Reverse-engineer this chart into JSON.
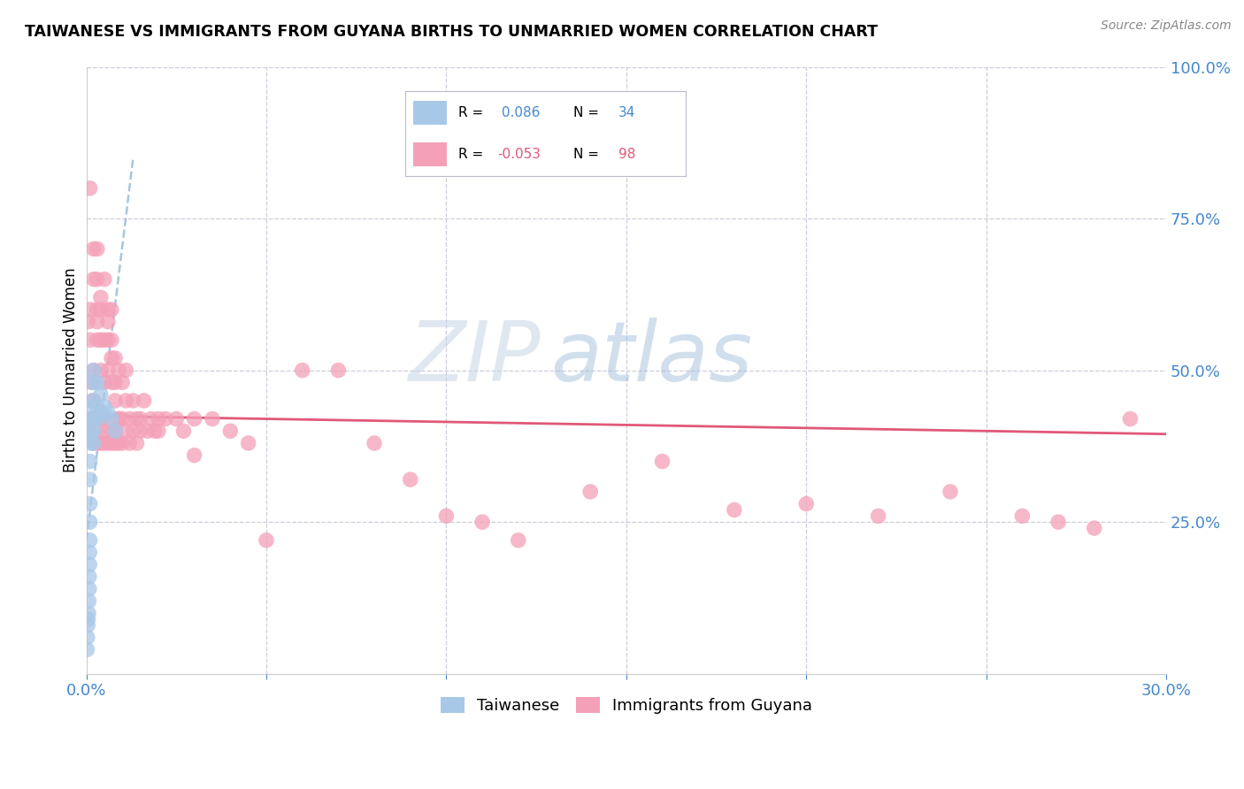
{
  "title": "TAIWANESE VS IMMIGRANTS FROM GUYANA BIRTHS TO UNMARRIED WOMEN CORRELATION CHART",
  "source": "Source: ZipAtlas.com",
  "ylabel": "Births to Unmarried Women",
  "xlim": [
    0.0,
    0.3
  ],
  "ylim": [
    0.0,
    1.0
  ],
  "color_taiwanese": "#a8c8e8",
  "color_guyana": "#f4a0b8",
  "color_trend_taiwanese": "#90b8d8",
  "color_trend_guyana": "#e05878",
  "color_blue_text": "#4488cc",
  "color_pink_text": "#e05878",
  "watermark_zip": "ZIP",
  "watermark_atlas": "atlas",
  "watermark_color_zip": "#c0d0e0",
  "watermark_color_atlas": "#90b8d8",
  "grid_color": "#ccccdd",
  "background_color": "#ffffff",
  "tw_x": [
    0.0002,
    0.0003,
    0.0004,
    0.0005,
    0.0006,
    0.0007,
    0.0008,
    0.0008,
    0.0009,
    0.0009,
    0.001,
    0.001,
    0.001,
    0.001,
    0.001,
    0.0012,
    0.0013,
    0.0015,
    0.0015,
    0.0017,
    0.002,
    0.002,
    0.002,
    0.002,
    0.002,
    0.003,
    0.003,
    0.003,
    0.004,
    0.004,
    0.005,
    0.006,
    0.007,
    0.008
  ],
  "tw_y": [
    0.04,
    0.06,
    0.08,
    0.09,
    0.1,
    0.12,
    0.14,
    0.16,
    0.18,
    0.2,
    0.22,
    0.25,
    0.28,
    0.32,
    0.35,
    0.38,
    0.4,
    0.42,
    0.45,
    0.48,
    0.38,
    0.4,
    0.42,
    0.44,
    0.5,
    0.42,
    0.44,
    0.48,
    0.43,
    0.46,
    0.44,
    0.43,
    0.42,
    0.4
  ],
  "gy_x": [
    0.0005,
    0.001,
    0.001,
    0.001,
    0.0015,
    0.002,
    0.002,
    0.002,
    0.002,
    0.003,
    0.003,
    0.003,
    0.003,
    0.003,
    0.004,
    0.004,
    0.004,
    0.004,
    0.005,
    0.005,
    0.005,
    0.006,
    0.006,
    0.006,
    0.006,
    0.007,
    0.007,
    0.007,
    0.007,
    0.008,
    0.008,
    0.008,
    0.009,
    0.009,
    0.01,
    0.01,
    0.011,
    0.011,
    0.012,
    0.013,
    0.014,
    0.015,
    0.016,
    0.017,
    0.018,
    0.019,
    0.02,
    0.022,
    0.025,
    0.027,
    0.03,
    0.035,
    0.04,
    0.045,
    0.05,
    0.06,
    0.07,
    0.08,
    0.09,
    0.1,
    0.11,
    0.12,
    0.14,
    0.16,
    0.18,
    0.2,
    0.22,
    0.24,
    0.26,
    0.27,
    0.28,
    0.29,
    0.001,
    0.001,
    0.002,
    0.002,
    0.003,
    0.003,
    0.004,
    0.004,
    0.005,
    0.005,
    0.006,
    0.006,
    0.007,
    0.007,
    0.008,
    0.008,
    0.009,
    0.009,
    0.01,
    0.011,
    0.012,
    0.013,
    0.014,
    0.015,
    0.02,
    0.03
  ],
  "gy_y": [
    0.58,
    0.55,
    0.6,
    0.8,
    0.48,
    0.65,
    0.7,
    0.45,
    0.5,
    0.6,
    0.58,
    0.55,
    0.65,
    0.7,
    0.55,
    0.6,
    0.5,
    0.62,
    0.55,
    0.48,
    0.65,
    0.5,
    0.55,
    0.6,
    0.58,
    0.48,
    0.52,
    0.55,
    0.6,
    0.48,
    0.52,
    0.45,
    0.42,
    0.5,
    0.42,
    0.48,
    0.45,
    0.5,
    0.42,
    0.45,
    0.42,
    0.42,
    0.45,
    0.4,
    0.42,
    0.4,
    0.42,
    0.42,
    0.42,
    0.4,
    0.42,
    0.42,
    0.4,
    0.38,
    0.22,
    0.5,
    0.5,
    0.38,
    0.32,
    0.26,
    0.25,
    0.22,
    0.3,
    0.35,
    0.27,
    0.28,
    0.26,
    0.3,
    0.26,
    0.25,
    0.24,
    0.42,
    0.4,
    0.42,
    0.38,
    0.42,
    0.38,
    0.4,
    0.38,
    0.42,
    0.38,
    0.42,
    0.38,
    0.4,
    0.38,
    0.4,
    0.38,
    0.4,
    0.38,
    0.42,
    0.38,
    0.4,
    0.38,
    0.4,
    0.38,
    0.4,
    0.4,
    0.36
  ],
  "tw_trend_x0": 0.0,
  "tw_trend_x1": 0.013,
  "tw_trend_y0": 0.22,
  "tw_trend_y1": 0.85,
  "gy_trend_x0": 0.0,
  "gy_trend_x1": 0.3,
  "gy_trend_y0": 0.425,
  "gy_trend_y1": 0.395
}
